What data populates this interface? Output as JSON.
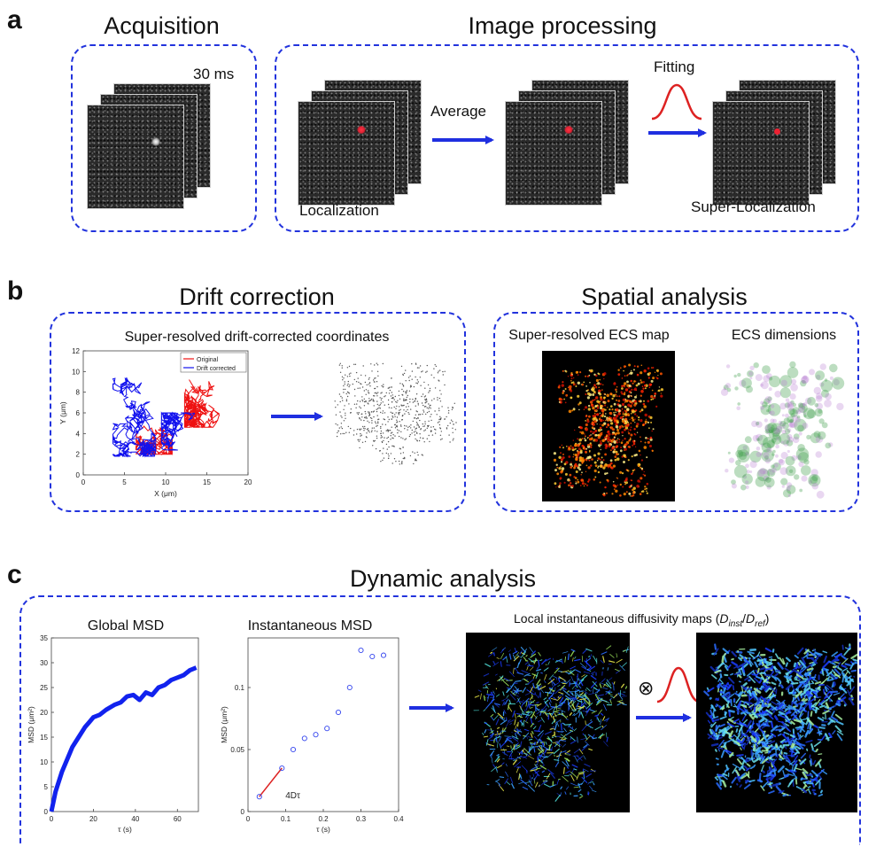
{
  "panels": {
    "a": {
      "letter": "a",
      "acquisition_title": "Acquisition",
      "processing_title": "Image processing",
      "frame_time": "30 ms",
      "average_label": "Average",
      "fitting_label": "Fitting",
      "localization_label": "Localization",
      "super_localization_label": "Super-Localization"
    },
    "b": {
      "letter": "b",
      "drift_title": "Drift correction",
      "spatial_title": "Spatial analysis",
      "coords_caption": "Super-resolved drift-corrected coordinates",
      "ecs_map_caption": "Super-resolved ECS map",
      "ecs_dim_caption": "ECS dimensions"
    },
    "c": {
      "letter": "c",
      "dynamic_title": "Dynamic analysis",
      "global_msd_title": "Global MSD",
      "inst_msd_title": "Instantaneous MSD",
      "diffusivity_caption_prefix": "Local instantaneous diffusivity maps (",
      "d_inst_main": "D",
      "d_inst_sub": "inst",
      "slash": "/",
      "d_ref_main": "D",
      "d_ref_sub": "ref",
      "caption_close": ")",
      "convolve_symbol": "⊗",
      "slope_label": "4Dτ"
    }
  },
  "colors": {
    "dashed_border": "#2233dd",
    "arrow": "#1f2fe0",
    "original": "#ee1111",
    "drift_corrected": "#1111ee",
    "gaussian": "#dd2222"
  },
  "chart_data": [
    {
      "type": "line",
      "legend": [
        "Original",
        "Drift corrected"
      ],
      "legend_position": "top-right",
      "xlabel": "X (μm)",
      "ylabel": "Y (μm)",
      "xlim": [
        0,
        20
      ],
      "ylim": [
        12,
        0
      ],
      "xticks": [
        "0",
        "5",
        "10",
        "15",
        "20"
      ],
      "yticks": [
        "0",
        "2",
        "4",
        "6",
        "8",
        "10",
        "12"
      ]
    },
    {
      "type": "line",
      "title": "Global MSD",
      "xlabel": "τ (s)",
      "ylabel": "MSD (μm²)",
      "xlim": [
        0,
        70
      ],
      "ylim": [
        0,
        35
      ],
      "xticks": [
        "0",
        "20",
        "40",
        "60"
      ],
      "yticks": [
        "0",
        "5",
        "10",
        "15",
        "20",
        "25",
        "30",
        "35"
      ],
      "x": [
        0,
        2,
        5,
        8,
        10,
        13,
        16,
        18,
        20,
        23,
        26,
        30,
        33,
        36,
        39,
        42,
        45,
        48,
        51,
        54,
        57,
        60,
        63,
        66,
        69
      ],
      "y": [
        0,
        4,
        8,
        11,
        13,
        15,
        17,
        18,
        19,
        19.5,
        20.5,
        21.5,
        22,
        23.2,
        23.5,
        22.5,
        24,
        23.5,
        25,
        25.5,
        26.5,
        27,
        27.5,
        28.5,
        29
      ]
    },
    {
      "type": "scatter",
      "title": "Instantaneous MSD",
      "xlabel": "τ (s)",
      "ylabel": "MSD (μm²)",
      "xlim": [
        0,
        0.4
      ],
      "ylim": [
        0,
        0.14
      ],
      "xticks": [
        "0",
        "0.1",
        "0.2",
        "0.3",
        "0.4"
      ],
      "yticks": [
        "0",
        "0.05",
        "0.1"
      ],
      "x": [
        0.03,
        0.09,
        0.12,
        0.15,
        0.18,
        0.21,
        0.24,
        0.27,
        0.3,
        0.33,
        0.36
      ],
      "y": [
        0.012,
        0.035,
        0.05,
        0.059,
        0.062,
        0.067,
        0.08,
        0.1,
        0.13,
        0.125,
        0.126
      ],
      "fit_line": {
        "x": [
          0.03,
          0.09
        ],
        "y": [
          0.012,
          0.035
        ],
        "label": "4Dτ"
      }
    }
  ]
}
